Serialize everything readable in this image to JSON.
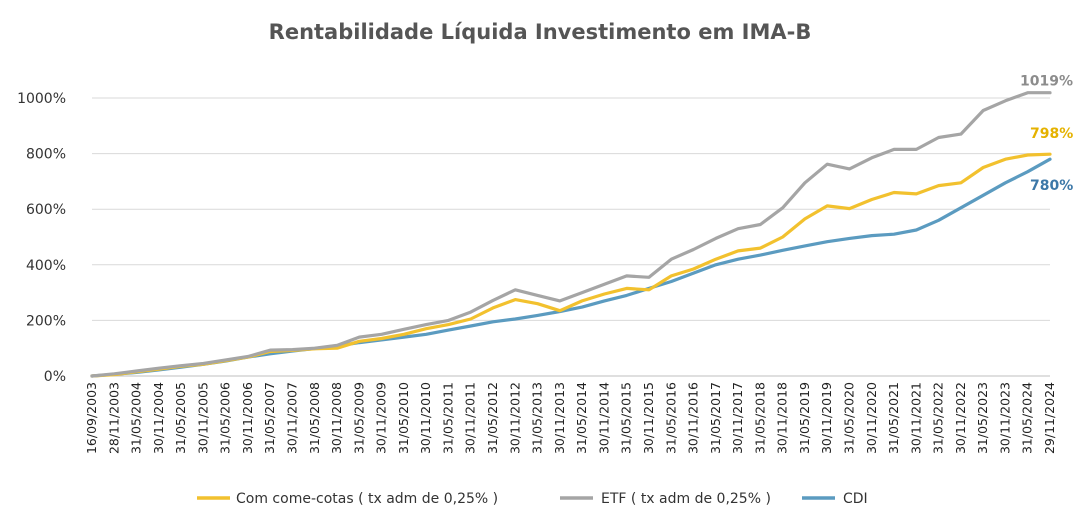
{
  "chart_data": {
    "type": "line",
    "title": "Rentabilidade Líquida Investimento em  IMA-B",
    "xlabel": "",
    "ylabel": "",
    "ylim": [
      0,
      1000
    ],
    "yticks": [
      0,
      200,
      400,
      600,
      800,
      1000
    ],
    "ytick_labels": [
      "0%",
      "200%",
      "400%",
      "600%",
      "800%",
      "1000%"
    ],
    "grid": true,
    "legend_position": "bottom",
    "categories": [
      "16/09/2003",
      "28/11/2003",
      "31/05/2004",
      "30/11/2004",
      "31/05/2005",
      "30/11/2005",
      "31/05/2006",
      "30/11/2006",
      "31/05/2007",
      "30/11/2007",
      "31/05/2008",
      "30/11/2008",
      "31/05/2009",
      "30/11/2009",
      "31/05/2010",
      "30/11/2010",
      "31/05/2011",
      "30/11/2011",
      "31/05/2012",
      "30/11/2012",
      "31/05/2013",
      "30/11/2013",
      "31/05/2014",
      "30/11/2014",
      "31/05/2015",
      "30/11/2015",
      "31/05/2016",
      "30/11/2016",
      "31/05/2017",
      "30/11/2017",
      "31/05/2018",
      "30/11/2018",
      "31/05/2019",
      "30/11/2019",
      "31/05/2020",
      "30/11/2020",
      "31/05/2021",
      "30/11/2021",
      "31/05/2022",
      "30/11/2022",
      "31/05/2023",
      "30/11/2023",
      "31/05/2024",
      "29/11/2024"
    ],
    "series": [
      {
        "name": "Com come-cotas ( tx adm de 0,25% )",
        "color": "#F2C12E",
        "end_label": "798%",
        "values": [
          0,
          5,
          15,
          25,
          35,
          42,
          55,
          68,
          88,
          92,
          98,
          100,
          125,
          135,
          150,
          170,
          185,
          205,
          245,
          275,
          260,
          235,
          270,
          295,
          315,
          310,
          360,
          385,
          420,
          450,
          460,
          500,
          565,
          612,
          602,
          635,
          660,
          655,
          685,
          695,
          750,
          780,
          795,
          798
        ]
      },
      {
        "name": "ETF ( tx adm de 0,25% )",
        "color": "#A5A5A5",
        "end_label": "1019%",
        "values": [
          0,
          8,
          18,
          28,
          37,
          45,
          58,
          70,
          93,
          95,
          100,
          110,
          140,
          150,
          168,
          185,
          200,
          230,
          272,
          310,
          290,
          270,
          300,
          330,
          360,
          355,
          420,
          455,
          495,
          530,
          545,
          605,
          695,
          762,
          745,
          785,
          815,
          815,
          858,
          870,
          955,
          990,
          1019,
          1019
        ]
      },
      {
        "name": "CDI",
        "color": "#5B9BC0",
        "end_label": "780%",
        "values": [
          0,
          6,
          13,
          22,
          32,
          42,
          54,
          68,
          80,
          90,
          99,
          108,
          120,
          130,
          140,
          150,
          165,
          180,
          195,
          205,
          218,
          232,
          248,
          270,
          290,
          315,
          340,
          370,
          400,
          420,
          435,
          452,
          468,
          483,
          495,
          505,
          510,
          525,
          560,
          605,
          650,
          695,
          735,
          780
        ]
      }
    ]
  }
}
